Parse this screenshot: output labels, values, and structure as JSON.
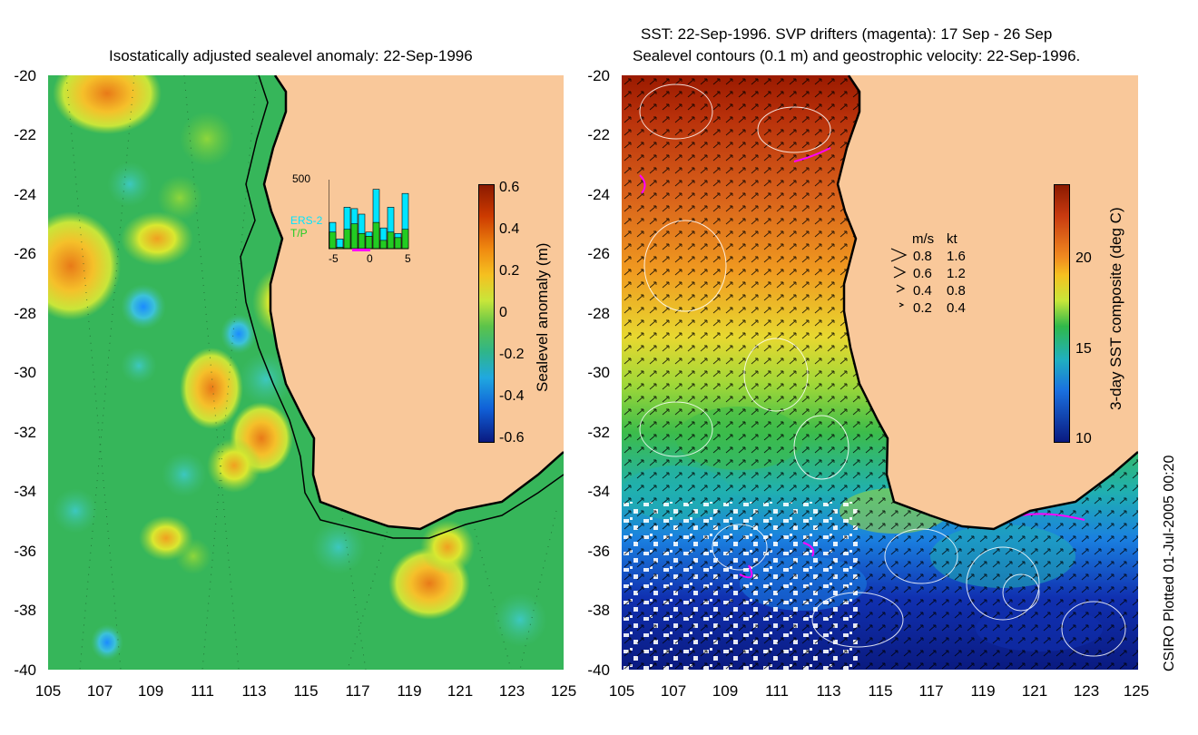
{
  "left_panel": {
    "title": "Isostatically adjusted sealevel anomaly: 22-Sep-1996",
    "lat_ticks": [
      "-20",
      "-22",
      "-24",
      "-26",
      "-28",
      "-30",
      "-32",
      "-34",
      "-36",
      "-38",
      "-40"
    ],
    "lon_ticks": [
      "105",
      "107",
      "109",
      "111",
      "113",
      "115",
      "117",
      "119",
      "121",
      "123",
      "125"
    ],
    "colorbar": {
      "label": "Sealevel anomaly (m)",
      "ticks": [
        "0.6",
        "0.4",
        "0.2",
        "0",
        "-0.2",
        "-0.4",
        "-0.6"
      ]
    },
    "inset": {
      "ymax_label": "500",
      "series1": "ERS-2",
      "series2": "T/P",
      "x_ticks": [
        "-5",
        "0",
        "5"
      ],
      "ers2_values": [
        190,
        70,
        300,
        290,
        250,
        120,
        430,
        150,
        300,
        110,
        400
      ],
      "tp_values": [
        120,
        10,
        140,
        180,
        110,
        90,
        190,
        60,
        120,
        80,
        140
      ],
      "colors": {
        "ers2": "#00e5ff",
        "tp": "#22cc22",
        "window": "#ff00ff"
      }
    }
  },
  "right_panel": {
    "title_line1": "SST: 22-Sep-1996. SVP drifters (magenta): 17 Sep - 26 Sep",
    "title_line2": "Sealevel contours (0.1 m) and geostrophic velocity: 22-Sep-1996.",
    "lat_ticks": [
      "-20",
      "-22",
      "-24",
      "-26",
      "-28",
      "-30",
      "-32",
      "-34",
      "-36",
      "-38",
      "-40"
    ],
    "lon_ticks": [
      "105",
      "107",
      "109",
      "111",
      "113",
      "115",
      "117",
      "119",
      "121",
      "123",
      "125"
    ],
    "colorbar": {
      "label": "3-day SST composite (deg C)",
      "ticks": [
        "20",
        "15",
        "10"
      ]
    },
    "speed_legend": {
      "header_ms": "m/s",
      "header_kt": "kt",
      "rows": [
        {
          "ms": "0.8",
          "kt": "1.6"
        },
        {
          "ms": "0.6",
          "kt": "1.2"
        },
        {
          "ms": "0.4",
          "kt": "0.8"
        },
        {
          "ms": "0.2",
          "kt": "0.4"
        }
      ]
    }
  },
  "credit": "CSIRO Plotted 01-Jul-2005 00:20",
  "colors": {
    "land": "#f9c89a",
    "ocean_ssh_base": "#2fb85a",
    "coast": "#000000"
  }
}
